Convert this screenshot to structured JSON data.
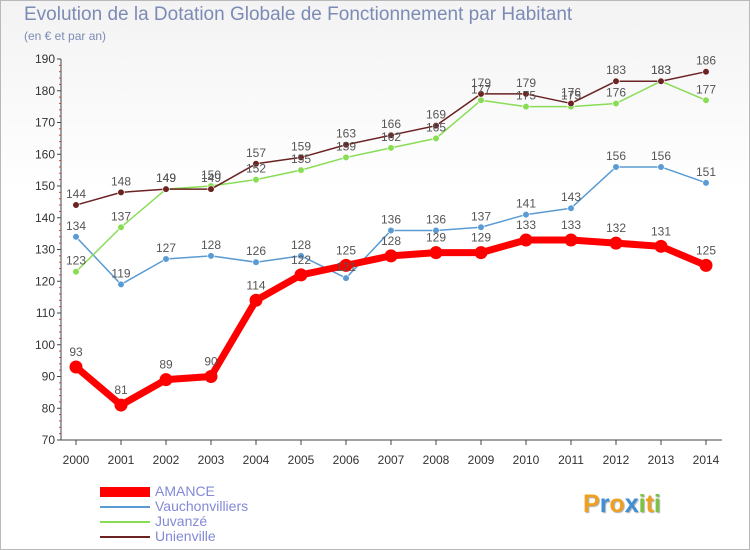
{
  "chart_data": {
    "type": "line",
    "title": "Evolution de la Dotation Globale de Fonctionnement par Habitant",
    "subtitle": "(en € et par an)",
    "categories": [
      "2000",
      "2001",
      "2002",
      "2003",
      "2004",
      "2005",
      "2006",
      "2007",
      "2008",
      "2009",
      "2010",
      "2011",
      "2012",
      "2013",
      "2014"
    ],
    "ylim": [
      70,
      190
    ],
    "yticks": [
      70,
      80,
      90,
      100,
      110,
      120,
      130,
      140,
      150,
      160,
      170,
      180,
      190
    ],
    "grid": false,
    "legend": "bottom-left",
    "series": [
      {
        "name": "AMANCE",
        "color": "#ff0000",
        "values": [
          93,
          81,
          89,
          90,
          114,
          122,
          125,
          128,
          129,
          129,
          133,
          133,
          132,
          131,
          125
        ]
      },
      {
        "name": "Vauchonvilliers",
        "color": "#5a9bd3",
        "values": [
          134,
          119,
          127,
          128,
          126,
          128,
          121,
          136,
          136,
          137,
          141,
          143,
          156,
          156,
          151
        ]
      },
      {
        "name": "Juvanzé",
        "color": "#88dd55",
        "values": [
          123,
          137,
          149,
          150,
          152,
          155,
          159,
          162,
          165,
          177,
          175,
          175,
          176,
          183,
          177
        ]
      },
      {
        "name": "Unienville",
        "color": "#6b2222",
        "values": [
          144,
          148,
          149,
          149,
          157,
          159,
          163,
          166,
          169,
          179,
          179,
          176,
          183,
          183,
          186
        ]
      }
    ]
  },
  "logo": {
    "letters": [
      "P",
      "r",
      "o",
      "x",
      "i",
      "t",
      "i"
    ],
    "colors": [
      "#f0a020",
      "#3f8ed6",
      "#f0a020",
      "#3f8ed6",
      "#7cc242",
      "#f0a020",
      "#7cc242"
    ]
  }
}
